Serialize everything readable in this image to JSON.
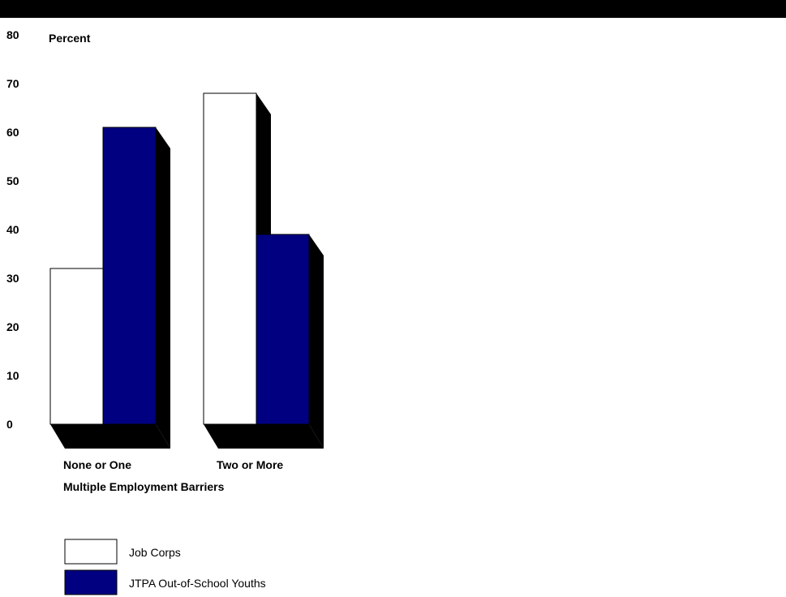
{
  "chart_data": {
    "type": "bar",
    "ylabel": "Percent",
    "xlabel": "Multiple Employment Barriers",
    "categories": [
      "None or One",
      "Two or More"
    ],
    "series": [
      {
        "name": "Job Corps",
        "values": [
          32,
          68
        ],
        "color": "#ffffff"
      },
      {
        "name": "JTPA Out-of-School Youths",
        "values": [
          61,
          39
        ],
        "color": "#000080"
      }
    ],
    "ylim": [
      0,
      80
    ],
    "yticks": [
      "0",
      "10",
      "20",
      "30",
      "40",
      "50",
      "60",
      "70",
      "80"
    ],
    "grid": false,
    "legend": "bottom-left",
    "shadow_color": "#000000"
  }
}
